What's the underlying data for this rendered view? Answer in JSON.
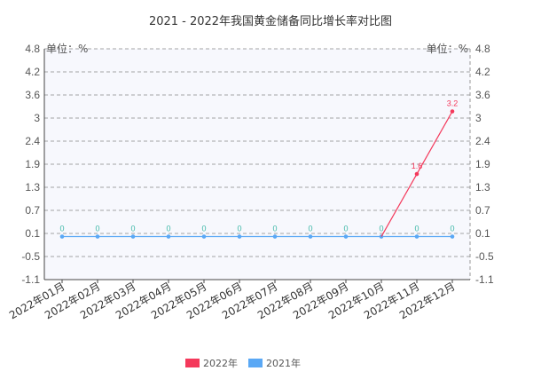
{
  "chart_data": {
    "type": "line",
    "title": "2021 - 2022年我国黄金储备同比增长率对比图",
    "unit_left": "单位：%",
    "unit_right": "单位：%",
    "yticks": [
      "4.8",
      "4.2",
      "3.6",
      "3",
      "2.4",
      "1.9",
      "1.3",
      "0.7",
      "0.1",
      "-0.5",
      "-1.1"
    ],
    "ylim": [
      -1.1,
      4.8
    ],
    "grid": true,
    "legend_position": "bottom-center",
    "categories": [
      "2022年01月",
      "2022年02月",
      "2022年03月",
      "2022年04月",
      "2022年05月",
      "2022年06月",
      "2022年07月",
      "2022年08月",
      "2022年09月",
      "2022年10月",
      "2022年11月",
      "2022年12月"
    ],
    "series": [
      {
        "name": "2022年",
        "color": "#f4395b",
        "values": [
          null,
          null,
          null,
          null,
          null,
          null,
          null,
          null,
          null,
          0,
          1.6,
          3.2
        ],
        "labels": [
          null,
          null,
          null,
          null,
          null,
          null,
          null,
          null,
          null,
          null,
          "1.6",
          "3.2"
        ]
      },
      {
        "name": "2021年",
        "color": "#5aa8f5",
        "label_color": "#3fb8a8",
        "values": [
          0,
          0,
          0,
          0,
          0,
          0,
          0,
          0,
          0,
          0,
          0,
          0
        ],
        "labels": [
          "0",
          "0",
          "0",
          "0",
          "0",
          "0",
          "0",
          "0",
          "0",
          "0",
          "0",
          "0"
        ]
      }
    ]
  }
}
